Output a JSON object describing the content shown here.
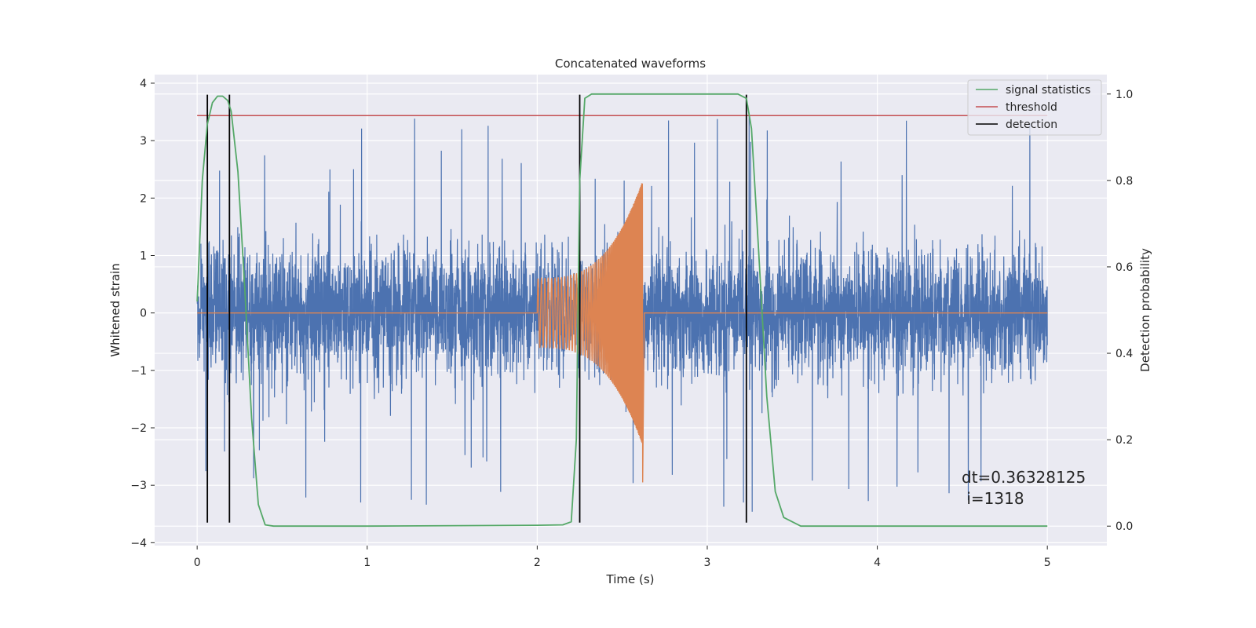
{
  "chart_data": {
    "type": "line",
    "title": "Concatenated waveforms",
    "xlabel": "Time (s)",
    "ylabel": "Whitened strain",
    "ylabel_right": "Detection probability",
    "xlim": [
      -0.25,
      5.35
    ],
    "ylim": [
      -4.05,
      4.15
    ],
    "ylim_right": [
      -0.045,
      1.045
    ],
    "xticks": [
      "0",
      "1",
      "2",
      "3",
      "4",
      "5"
    ],
    "yticks": [
      "4",
      "3",
      "2",
      "1",
      "0",
      "−1",
      "−2",
      "−3",
      "−4"
    ],
    "yticks_right": [
      "1.0",
      "0.8",
      "0.6",
      "0.4",
      "0.2",
      "0.0"
    ],
    "grid": true,
    "legend_position": "top-right",
    "legend": [
      "signal statistics",
      "threshold",
      "detection"
    ],
    "colors": {
      "strain": "#4c72b0",
      "injected_signal": "#dd8452",
      "signal_statistics": "#55a868",
      "threshold": "#c44e52",
      "detection": "#000000",
      "background": "#eaeaf2",
      "grid": "#ffffff"
    },
    "strain": {
      "x_range": [
        0,
        5
      ],
      "typical_amplitude": 1.5,
      "peak_amplitude": 3.8
    },
    "injected_signal": {
      "start": 2.0,
      "end": 2.62,
      "start_amplitude": 0.6,
      "peak_amplitude": 2.3,
      "min_value": -2.95
    },
    "signal_statistics": {
      "x": [
        0,
        0.03,
        0.06,
        0.09,
        0.12,
        0.15,
        0.18,
        0.2,
        0.24,
        0.28,
        0.32,
        0.36,
        0.4,
        0.45,
        1.0,
        2.0,
        2.15,
        2.2,
        2.23,
        2.25,
        2.28,
        2.32,
        3.0,
        3.18,
        3.23,
        3.26,
        3.3,
        3.35,
        3.4,
        3.45,
        3.55,
        5.0
      ],
      "y": [
        0.52,
        0.8,
        0.93,
        0.98,
        0.995,
        0.995,
        0.985,
        0.96,
        0.82,
        0.55,
        0.25,
        0.05,
        0.003,
        0.0,
        0.0,
        0.002,
        0.003,
        0.01,
        0.2,
        0.8,
        0.99,
        1.0,
        1.0,
        1.0,
        0.99,
        0.92,
        0.65,
        0.3,
        0.08,
        0.02,
        0.0,
        0.0
      ]
    },
    "threshold": {
      "value": 0.95,
      "x_range": [
        0,
        5
      ]
    },
    "detections": [
      0.06,
      0.19,
      2.25,
      3.23
    ],
    "detection_range": [
      -3.65,
      3.8
    ],
    "annotation": [
      "dt=0.36328125",
      " i=1318"
    ]
  }
}
